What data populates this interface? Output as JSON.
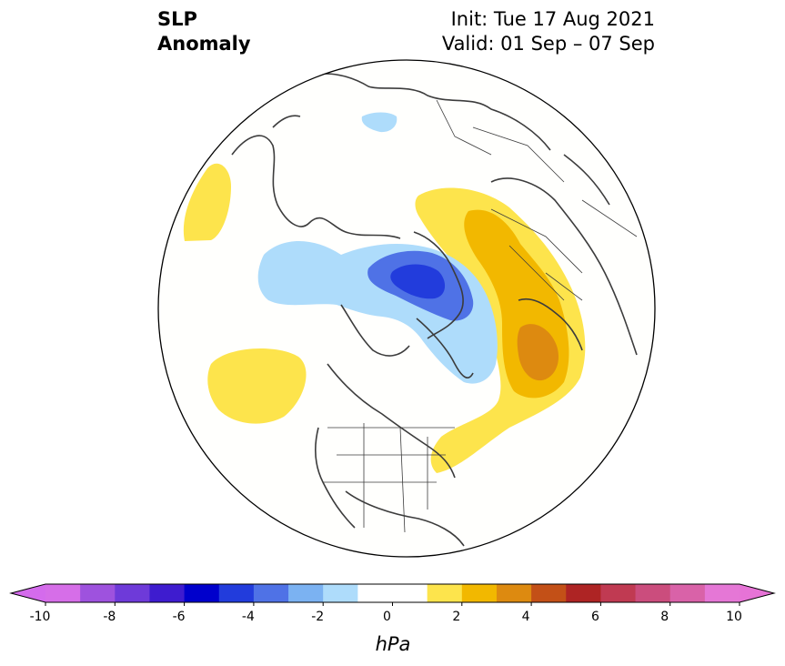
{
  "title": {
    "line1": "SLP",
    "line2": "Anomaly"
  },
  "info": {
    "init": "Init: Tue 17 Aug 2021",
    "valid": "Valid: 01 Sep – 07 Sep"
  },
  "colorbar": {
    "units": "hPa",
    "ticks": [
      "-10",
      "-8",
      "-6",
      "-4",
      "-2",
      "0",
      "2",
      "4",
      "6",
      "8",
      "10"
    ],
    "colors": [
      "#d66ee8",
      "#9e52de",
      "#6e3ad9",
      "#3e1ccf",
      "#0000cc",
      "#223cdc",
      "#4f72e6",
      "#7bb2f2",
      "#aedcfb",
      "#ffffff",
      "#ffffff",
      "#fde44c",
      "#f2b800",
      "#dd8a10",
      "#c35017",
      "#ae2424",
      "#c03a52",
      "#cb4d7d",
      "#d962a8",
      "#e577d6"
    ],
    "under_color": "#d46bec",
    "over_color": "#e673d6"
  },
  "map": {
    "projection": "north-polar-stereographic",
    "anomaly_regions": [
      {
        "name": "positive-anomaly-north-pacific",
        "color": "#fde44c"
      },
      {
        "name": "positive-anomaly-east-pacific",
        "color": "#fde44c"
      },
      {
        "name": "positive-anomaly-eurasia",
        "color": "#fde44c"
      },
      {
        "name": "positive-anomaly-eurasia-core",
        "color": "#f2b800"
      },
      {
        "name": "positive-anomaly-eurasia-max",
        "color": "#dd8a10"
      },
      {
        "name": "negative-anomaly-arctic",
        "color": "#aedcfb"
      },
      {
        "name": "negative-anomaly-arctic-core",
        "color": "#4f72e6"
      },
      {
        "name": "negative-anomaly-arctic-max",
        "color": "#223cdc"
      },
      {
        "name": "negative-anomaly-indian-ocean",
        "color": "#aedcfb"
      }
    ]
  }
}
